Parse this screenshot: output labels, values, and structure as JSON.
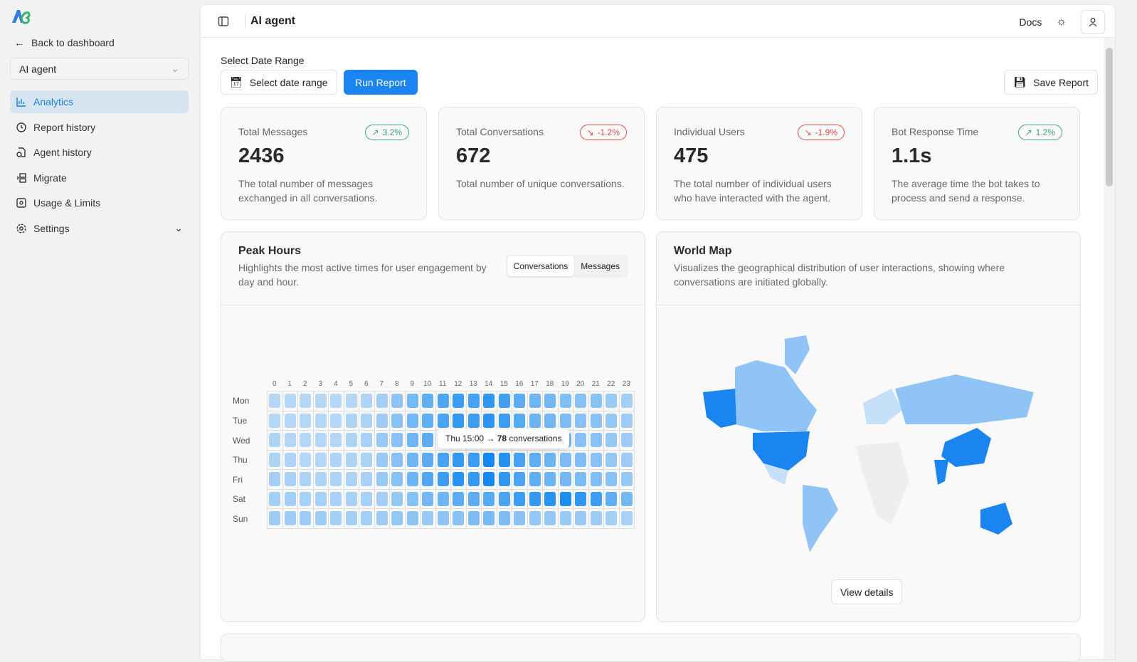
{
  "sidebar": {
    "back": "Back to dashboard",
    "agent_select": "AI agent",
    "items": [
      {
        "label": "Analytics",
        "icon": "bar-chart-icon",
        "active": true
      },
      {
        "label": "Report history",
        "icon": "history-icon"
      },
      {
        "label": "Agent history",
        "icon": "file-clock-icon"
      },
      {
        "label": "Migrate",
        "icon": "migrate-icon"
      },
      {
        "label": "Usage & Limits",
        "icon": "usage-icon"
      },
      {
        "label": "Settings",
        "icon": "gear-icon"
      }
    ]
  },
  "header": {
    "title": "AI agent",
    "docs": "Docs"
  },
  "controls": {
    "date_label": "Select Date Range",
    "date_button": "Select date range",
    "run": "Run Report",
    "save": "Save Report",
    "accent": "#1a84f0"
  },
  "cards": [
    {
      "title": "Total Messages",
      "value": "2436",
      "change": "3.2%",
      "trend": "up",
      "desc": "The total number of messages exchanged in all conversations."
    },
    {
      "title": "Total Conversations",
      "value": "672",
      "change": "-1.2%",
      "trend": "down",
      "desc": "Total number of unique conversations."
    },
    {
      "title": "Individual Users",
      "value": "475",
      "change": "-1.9%",
      "trend": "down",
      "desc": "The total number of individual users who have interacted with the agent."
    },
    {
      "title": "Bot Response Time",
      "value": "1.1s",
      "change": "1.2%",
      "trend": "up",
      "desc": "The average time the bot takes to process and send a response."
    }
  ],
  "peak": {
    "title": "Peak Hours",
    "desc": "Highlights the most active times for user engagement by day and hour.",
    "tabs": [
      "Conversations",
      "Messages"
    ],
    "active_tab": "Conversations",
    "tooltip": {
      "label": "Thu 15:00",
      "value": "78",
      "unit": "conversations"
    }
  },
  "world": {
    "title": "World Map",
    "desc": "Visualizes the geographical distribution of user interactions, showing where conversations are initiated globally.",
    "button": "View details"
  },
  "chart_data": {
    "type": "heatmap",
    "x": [
      "0",
      "1",
      "2",
      "3",
      "4",
      "5",
      "6",
      "7",
      "8",
      "9",
      "10",
      "11",
      "12",
      "13",
      "14",
      "15",
      "16",
      "17",
      "18",
      "19",
      "20",
      "21",
      "22",
      "23"
    ],
    "y": [
      "Mon",
      "Tue",
      "Wed",
      "Thu",
      "Fri",
      "Sat",
      "Sun"
    ],
    "values": [
      [
        10,
        10,
        10,
        10,
        10,
        10,
        12,
        18,
        28,
        38,
        48,
        58,
        68,
        62,
        72,
        64,
        52,
        42,
        40,
        34,
        32,
        30,
        22,
        18
      ],
      [
        10,
        10,
        10,
        10,
        10,
        12,
        14,
        20,
        30,
        40,
        50,
        60,
        70,
        66,
        74,
        66,
        54,
        44,
        40,
        36,
        32,
        30,
        24,
        20
      ],
      [
        12,
        10,
        10,
        10,
        10,
        12,
        16,
        22,
        32,
        42,
        52,
        60,
        70,
        68,
        74,
        66,
        56,
        44,
        40,
        36,
        32,
        30,
        24,
        20
      ],
      [
        12,
        12,
        10,
        10,
        12,
        12,
        14,
        22,
        32,
        42,
        52,
        62,
        70,
        68,
        86,
        78,
        62,
        50,
        44,
        36,
        34,
        30,
        24,
        20
      ],
      [
        18,
        16,
        14,
        12,
        14,
        14,
        16,
        22,
        32,
        44,
        56,
        66,
        76,
        70,
        86,
        72,
        60,
        50,
        44,
        40,
        36,
        34,
        30,
        24
      ],
      [
        18,
        18,
        16,
        16,
        16,
        16,
        16,
        18,
        24,
        32,
        40,
        44,
        52,
        52,
        54,
        60,
        66,
        70,
        76,
        82,
        72,
        66,
        50,
        40
      ],
      [
        20,
        20,
        20,
        20,
        18,
        18,
        18,
        20,
        26,
        28,
        22,
        28,
        30,
        36,
        38,
        36,
        30,
        26,
        24,
        22,
        22,
        20,
        18,
        16
      ]
    ],
    "max": 90,
    "color": "#0a84f0"
  }
}
